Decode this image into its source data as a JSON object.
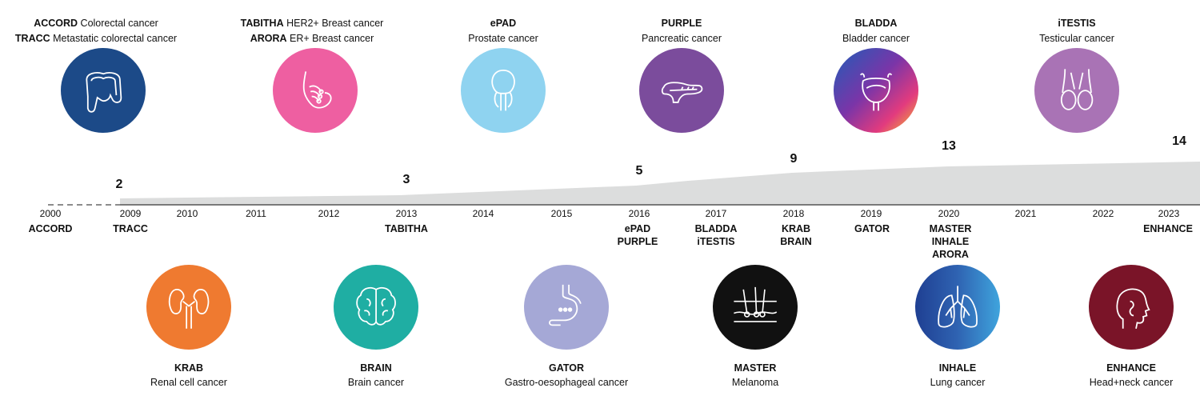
{
  "top_studies": [
    {
      "lines": [
        {
          "name": "ACCORD",
          "desc": "Colorectal cancer"
        },
        {
          "name": "TRACC",
          "desc": "Metastatic colorectal cancer"
        }
      ],
      "icon": "colon-icon",
      "color": "#1c4a88"
    },
    {
      "lines": [
        {
          "name": "TABITHA",
          "desc": "HER2+ Breast cancer"
        },
        {
          "name": "ARORA",
          "desc": "ER+ Breast cancer"
        }
      ],
      "icon": "breast-icon",
      "color": "#ee5fa1"
    },
    {
      "lines": [
        {
          "name": "ePAD",
          "desc": ""
        }
      ],
      "sub": "Prostate cancer",
      "icon": "prostate-icon",
      "color": "#8fd3f0"
    },
    {
      "lines": [
        {
          "name": "PURPLE",
          "desc": ""
        }
      ],
      "sub": "Pancreatic cancer",
      "icon": "pancreas-icon",
      "color": "#7b4c9c"
    },
    {
      "lines": [
        {
          "name": "BLADDA",
          "desc": ""
        }
      ],
      "sub": "Bladder cancer",
      "icon": "bladder-icon",
      "color": "#5a35a0"
    },
    {
      "lines": [
        {
          "name": "iTESTIS",
          "desc": ""
        }
      ],
      "sub": "Testicular cancer",
      "icon": "testis-icon",
      "color": "#a973b5"
    }
  ],
  "bottom_studies": [
    {
      "name": "KRAB",
      "desc": "Renal cell cancer",
      "icon": "kidney-icon",
      "color": "#ef7a30"
    },
    {
      "name": "BRAIN",
      "desc": "Brain cancer",
      "icon": "brain-icon",
      "color": "#1faea3"
    },
    {
      "name": "GATOR",
      "desc": "Gastro-oesophageal cancer",
      "icon": "stomach-icon",
      "color": "#a5a8d6"
    },
    {
      "name": "MASTER",
      "desc": "Melanoma",
      "icon": "skin-icon",
      "color": "#111111"
    },
    {
      "name": "INHALE",
      "desc": "Lung cancer",
      "icon": "lungs-icon",
      "color": "#2f63b2"
    },
    {
      "name": "ENHANCE",
      "desc": "Head+neck cancer",
      "icon": "head-icon",
      "color": "#7a1428"
    }
  ],
  "years": [
    "2000",
    "2009",
    "2010",
    "2011",
    "2012",
    "2013",
    "2014",
    "2015",
    "2016",
    "2017",
    "2018",
    "2019",
    "2020",
    "2021",
    "2022",
    "2023"
  ],
  "timeline_studies": [
    {
      "year": "2000",
      "names": [
        "ACCORD"
      ]
    },
    {
      "year": "2009",
      "names": [
        "TRACC"
      ]
    },
    {
      "year": "2013",
      "names": [
        "TABITHA"
      ]
    },
    {
      "year": "2016",
      "names": [
        "ePAD",
        "PURPLE"
      ]
    },
    {
      "year": "2017",
      "names": [
        "BLADDA",
        "iTESTIS"
      ]
    },
    {
      "year": "2018",
      "names": [
        "KRAB",
        "BRAIN"
      ]
    },
    {
      "year": "2019",
      "names": [
        "GATOR"
      ]
    },
    {
      "year": "2020",
      "names": [
        "MASTER",
        "INHALE",
        "ARORA"
      ]
    },
    {
      "year": "2023",
      "names": [
        "ENHANCE"
      ]
    }
  ],
  "counts": [
    {
      "value": "2",
      "year": "2009"
    },
    {
      "value": "3",
      "year": "2013"
    },
    {
      "value": "5",
      "year": "2016"
    },
    {
      "value": "9",
      "year": "2018"
    },
    {
      "value": "13",
      "year": "2020"
    },
    {
      "value": "14",
      "year": "2023"
    }
  ]
}
